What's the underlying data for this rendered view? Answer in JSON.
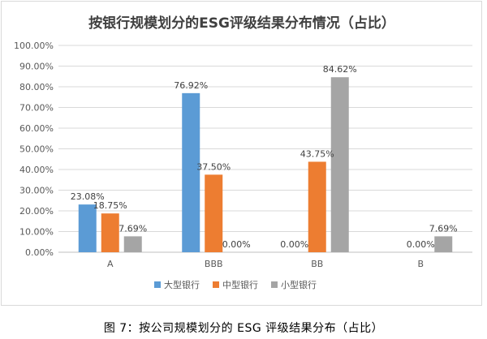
{
  "chart_data": {
    "type": "bar",
    "title": "按银行规模划分的ESG评级结果分布情况（占比）",
    "categories": [
      "A",
      "BBB",
      "BB",
      "B"
    ],
    "series": [
      {
        "name": "大型银行",
        "values": [
          23.08,
          76.92,
          0.0,
          null
        ],
        "labels": [
          "23.08%",
          "76.92%",
          "0.00%",
          ""
        ]
      },
      {
        "name": "中型银行",
        "values": [
          18.75,
          37.5,
          43.75,
          0.0
        ],
        "labels": [
          "18.75%",
          "37.50%",
          "43.75%",
          "0.00%"
        ]
      },
      {
        "name": "小型银行",
        "values": [
          7.69,
          0.0,
          84.62,
          7.69
        ],
        "labels": [
          "7.69%",
          "0.00%",
          "84.62%",
          "7.69%"
        ]
      }
    ],
    "ylim": [
      0,
      100
    ],
    "y_ticks": [
      "0.00%",
      "10.00%",
      "20.00%",
      "30.00%",
      "40.00%",
      "50.00%",
      "60.00%",
      "70.00%",
      "80.00%",
      "90.00%",
      "100.00%"
    ],
    "grid": true,
    "legend_position": "bottom",
    "colors": [
      "#5b9bd5",
      "#ed7d31",
      "#a5a5a5"
    ]
  },
  "caption": "图 7：按公司规模划分的 ESG 评级结果分布（占比）"
}
